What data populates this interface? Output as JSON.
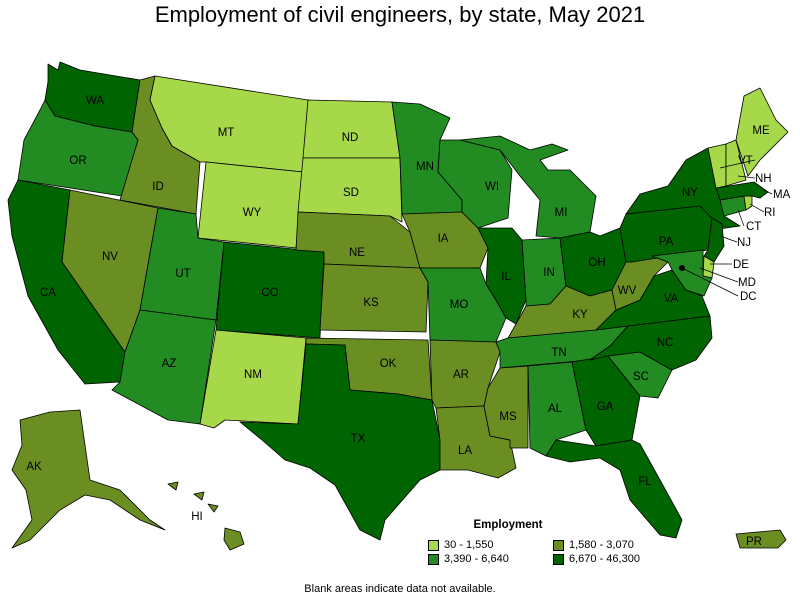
{
  "title": "Employment of civil engineers, by state, May 2021",
  "legend": {
    "title": "Employment",
    "bins": [
      {
        "label": "30 - 1,550",
        "color": "#a6d84a"
      },
      {
        "label": "1,580 - 3,070",
        "color": "#6b8e23"
      },
      {
        "label": "3,390 - 6,640",
        "color": "#228b22"
      },
      {
        "label": "6,670 - 46,300",
        "color": "#006400"
      }
    ]
  },
  "footnote": "Blank areas indicate data not available.",
  "states": [
    {
      "abbr": "WA",
      "bin": 3
    },
    {
      "abbr": "OR",
      "bin": 2
    },
    {
      "abbr": "CA",
      "bin": 3
    },
    {
      "abbr": "ID",
      "bin": 1
    },
    {
      "abbr": "NV",
      "bin": 1
    },
    {
      "abbr": "MT",
      "bin": 0
    },
    {
      "abbr": "WY",
      "bin": 0
    },
    {
      "abbr": "UT",
      "bin": 2
    },
    {
      "abbr": "AZ",
      "bin": 2
    },
    {
      "abbr": "CO",
      "bin": 3
    },
    {
      "abbr": "NM",
      "bin": 0
    },
    {
      "abbr": "ND",
      "bin": 0
    },
    {
      "abbr": "SD",
      "bin": 0
    },
    {
      "abbr": "NE",
      "bin": 1
    },
    {
      "abbr": "KS",
      "bin": 1
    },
    {
      "abbr": "OK",
      "bin": 1
    },
    {
      "abbr": "TX",
      "bin": 3
    },
    {
      "abbr": "MN",
      "bin": 2
    },
    {
      "abbr": "IA",
      "bin": 1
    },
    {
      "abbr": "MO",
      "bin": 2
    },
    {
      "abbr": "AR",
      "bin": 1
    },
    {
      "abbr": "LA",
      "bin": 1
    },
    {
      "abbr": "WI",
      "bin": 2
    },
    {
      "abbr": "IL",
      "bin": 3
    },
    {
      "abbr": "MI",
      "bin": 2
    },
    {
      "abbr": "IN",
      "bin": 2
    },
    {
      "abbr": "OH",
      "bin": 3
    },
    {
      "abbr": "KY",
      "bin": 1
    },
    {
      "abbr": "TN",
      "bin": 2
    },
    {
      "abbr": "MS",
      "bin": 1
    },
    {
      "abbr": "AL",
      "bin": 2
    },
    {
      "abbr": "GA",
      "bin": 3
    },
    {
      "abbr": "FL",
      "bin": 3
    },
    {
      "abbr": "SC",
      "bin": 2
    },
    {
      "abbr": "NC",
      "bin": 3
    },
    {
      "abbr": "VA",
      "bin": 3
    },
    {
      "abbr": "WV",
      "bin": 1
    },
    {
      "abbr": "PA",
      "bin": 3
    },
    {
      "abbr": "NY",
      "bin": 3
    },
    {
      "abbr": "ME",
      "bin": 0
    },
    {
      "abbr": "VT",
      "bin": 0
    },
    {
      "abbr": "NH",
      "bin": 0
    },
    {
      "abbr": "MA",
      "bin": 3
    },
    {
      "abbr": "RI",
      "bin": 0
    },
    {
      "abbr": "CT",
      "bin": 2
    },
    {
      "abbr": "NJ",
      "bin": 3
    },
    {
      "abbr": "DE",
      "bin": 0
    },
    {
      "abbr": "MD",
      "bin": 2
    },
    {
      "abbr": "DC",
      "bin": 3
    },
    {
      "abbr": "AK",
      "bin": 1
    },
    {
      "abbr": "HI",
      "bin": 1
    },
    {
      "abbr": "PR",
      "bin": 1
    }
  ]
}
